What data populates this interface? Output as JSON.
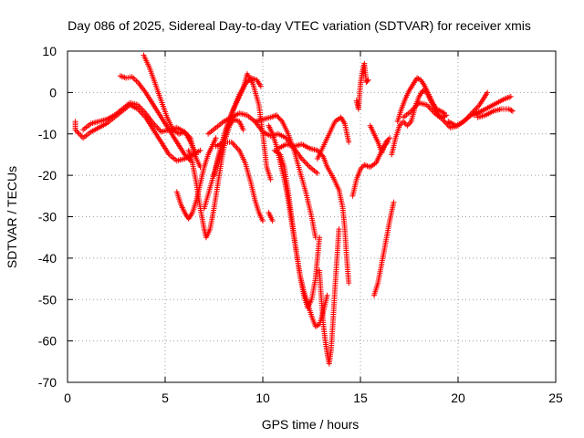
{
  "chart_data": {
    "type": "scatter",
    "title": "Day 086 of 2025, Sidereal Day-to-day VTEC variation (SDTVAR) for receiver xmis",
    "xlabel": "GPS time / hours",
    "ylabel": "SDTVAR / TECUs",
    "xlim": [
      0,
      25
    ],
    "ylim": [
      -70,
      10
    ],
    "x_ticks": [
      0,
      5,
      10,
      15,
      20,
      25
    ],
    "y_ticks": [
      10,
      0,
      -10,
      -20,
      -30,
      -40,
      -50,
      -60,
      -70
    ],
    "grid": true,
    "marker": "plus",
    "color": "#ff0000",
    "series": [
      {
        "points": [
          [
            0.4,
            -7
          ],
          [
            0.4,
            -9
          ],
          [
            0.8,
            -11
          ],
          [
            1.2,
            -9.5
          ],
          [
            1.6,
            -8.5
          ],
          [
            2.0,
            -7.5
          ],
          [
            2.4,
            -6
          ],
          [
            2.8,
            -4.5
          ],
          [
            3.2,
            -3
          ],
          [
            3.6,
            -4
          ],
          [
            4.0,
            -6
          ],
          [
            4.4,
            -9
          ],
          [
            4.8,
            -12
          ],
          [
            5.2,
            -15
          ],
          [
            5.6,
            -16.5
          ],
          [
            6.0,
            -16
          ],
          [
            6.4,
            -15
          ],
          [
            6.8,
            -14
          ]
        ]
      },
      {
        "points": [
          [
            0.8,
            -9
          ],
          [
            1.2,
            -7.5
          ],
          [
            1.6,
            -7
          ],
          [
            2.0,
            -6.5
          ],
          [
            2.4,
            -5.5
          ],
          [
            2.8,
            -4
          ],
          [
            3.2,
            -2.5
          ],
          [
            3.6,
            -3
          ],
          [
            4.0,
            -5
          ],
          [
            4.4,
            -7.5
          ],
          [
            4.8,
            -9.5
          ],
          [
            5.2,
            -9
          ],
          [
            5.6,
            -8.5
          ],
          [
            6.0,
            -9.5
          ],
          [
            6.3,
            -12
          ],
          [
            6.6,
            -15
          ]
        ]
      },
      {
        "points": [
          [
            2.7,
            4
          ],
          [
            3.0,
            3.5
          ],
          [
            3.3,
            3.8
          ],
          [
            3.6,
            2.5
          ],
          [
            4.0,
            0
          ],
          [
            4.4,
            -3
          ],
          [
            4.8,
            -6
          ],
          [
            5.2,
            -9
          ],
          [
            5.6,
            -12
          ],
          [
            6.0,
            -15
          ],
          [
            6.3,
            -16.5
          ]
        ]
      },
      {
        "points": [
          [
            3.9,
            9
          ],
          [
            4.2,
            6
          ],
          [
            4.5,
            2
          ],
          [
            4.8,
            -2
          ],
          [
            5.1,
            -6
          ],
          [
            5.4,
            -9
          ],
          [
            5.7,
            -10
          ],
          [
            6.0,
            -9.5
          ],
          [
            6.3,
            -11
          ],
          [
            6.5,
            -15
          ],
          [
            6.8,
            -18
          ]
        ]
      },
      {
        "points": [
          [
            5.6,
            -24
          ],
          [
            5.8,
            -27
          ],
          [
            6.0,
            -29
          ],
          [
            6.2,
            -30.5
          ],
          [
            6.4,
            -29
          ],
          [
            6.6,
            -26
          ],
          [
            6.8,
            -22
          ],
          [
            7.0,
            -18
          ],
          [
            7.2,
            -15
          ],
          [
            7.4,
            -13
          ],
          [
            7.6,
            -11
          ]
        ]
      },
      {
        "points": [
          [
            6.2,
            -14
          ],
          [
            6.4,
            -17
          ],
          [
            6.6,
            -22
          ],
          [
            6.8,
            -28
          ],
          [
            7.0,
            -33
          ],
          [
            7.1,
            -35
          ],
          [
            7.3,
            -33
          ],
          [
            7.5,
            -28
          ],
          [
            7.7,
            -22
          ],
          [
            7.9,
            -16
          ],
          [
            8.1,
            -11
          ],
          [
            8.3,
            -8
          ],
          [
            8.5,
            -6.5
          ],
          [
            8.8,
            -7
          ],
          [
            9.0,
            -9
          ]
        ]
      },
      {
        "points": [
          [
            7.0,
            -28
          ],
          [
            7.3,
            -23
          ],
          [
            7.6,
            -18
          ],
          [
            7.9,
            -13
          ],
          [
            8.2,
            -8
          ],
          [
            8.5,
            -4
          ],
          [
            8.8,
            -0.5
          ],
          [
            9.1,
            2
          ],
          [
            9.4,
            3.5
          ],
          [
            9.7,
            3
          ],
          [
            9.9,
            1.5
          ]
        ]
      },
      {
        "points": [
          [
            7.5,
            -20
          ],
          [
            7.8,
            -14
          ],
          [
            8.1,
            -9
          ],
          [
            8.4,
            -5
          ],
          [
            8.7,
            -2
          ],
          [
            9.0,
            1
          ],
          [
            9.2,
            4.5
          ],
          [
            9.5,
            2
          ],
          [
            9.8,
            -3
          ],
          [
            10.0,
            -10
          ],
          [
            10.2,
            -18
          ],
          [
            10.4,
            -21
          ]
        ]
      },
      {
        "points": [
          [
            7.2,
            -10
          ],
          [
            7.6,
            -8.5
          ],
          [
            8.0,
            -7
          ],
          [
            8.4,
            -6
          ],
          [
            8.8,
            -5
          ],
          [
            9.2,
            -5.5
          ],
          [
            9.6,
            -7
          ],
          [
            10.0,
            -9.5
          ],
          [
            10.4,
            -10.5
          ],
          [
            10.8,
            -10
          ],
          [
            11.2,
            -11
          ],
          [
            11.6,
            -13.5
          ],
          [
            12.0,
            -16
          ],
          [
            12.4,
            -18
          ],
          [
            12.8,
            -19.5
          ]
        ]
      },
      {
        "points": [
          [
            7.6,
            -13
          ],
          [
            8.0,
            -12
          ],
          [
            8.4,
            -12
          ],
          [
            8.8,
            -14
          ],
          [
            9.1,
            -17
          ],
          [
            9.4,
            -22
          ],
          [
            9.6,
            -26
          ],
          [
            9.8,
            -29
          ],
          [
            10.0,
            -31
          ]
        ]
      },
      {
        "points": [
          [
            10.3,
            -29
          ],
          [
            10.5,
            -31
          ]
        ]
      },
      {
        "points": [
          [
            9.6,
            -7
          ],
          [
            10.0,
            -6.5
          ],
          [
            10.4,
            -6
          ],
          [
            10.7,
            -5.5
          ],
          [
            11.0,
            -7
          ],
          [
            11.3,
            -10
          ],
          [
            11.6,
            -14
          ],
          [
            11.9,
            -19
          ],
          [
            12.2,
            -24
          ],
          [
            12.5,
            -30
          ],
          [
            12.7,
            -35
          ]
        ]
      },
      {
        "points": [
          [
            10.6,
            -14
          ],
          [
            10.9,
            -15
          ],
          [
            11.1,
            -18
          ],
          [
            11.3,
            -24
          ],
          [
            11.5,
            -31
          ],
          [
            11.7,
            -38
          ],
          [
            11.9,
            -44
          ],
          [
            12.1,
            -48
          ],
          [
            12.3,
            -51
          ],
          [
            12.5,
            -54
          ],
          [
            12.7,
            -56.5
          ],
          [
            12.9,
            -56
          ],
          [
            13.1,
            -53
          ],
          [
            13.3,
            -49
          ]
        ]
      },
      {
        "points": [
          [
            10.3,
            -8
          ],
          [
            10.5,
            -10
          ],
          [
            10.7,
            -13
          ],
          [
            10.9,
            -17
          ],
          [
            11.1,
            -21
          ],
          [
            11.3,
            -26
          ],
          [
            11.5,
            -32
          ],
          [
            11.7,
            -38
          ],
          [
            11.9,
            -44
          ],
          [
            12.1,
            -49
          ],
          [
            12.3,
            -52
          ],
          [
            12.5,
            -50
          ],
          [
            12.7,
            -45
          ],
          [
            12.8,
            -40
          ],
          [
            12.9,
            -35
          ]
        ]
      },
      {
        "points": [
          [
            10.8,
            -13.5
          ],
          [
            11.2,
            -12.5
          ],
          [
            11.6,
            -13
          ],
          [
            12.0,
            -12.5
          ],
          [
            12.4,
            -13.5
          ],
          [
            12.8,
            -14
          ],
          [
            13.1,
            -15.5
          ],
          [
            13.3,
            -18
          ],
          [
            13.6,
            -20.5
          ],
          [
            13.9,
            -23.5
          ],
          [
            14.1,
            -28
          ],
          [
            14.2,
            -33
          ],
          [
            14.3,
            -40
          ],
          [
            14.4,
            -46
          ]
        ]
      },
      {
        "points": [
          [
            12.8,
            -16
          ],
          [
            13.1,
            -13
          ],
          [
            13.4,
            -10
          ],
          [
            13.7,
            -7
          ],
          [
            14.0,
            -6
          ],
          [
            14.2,
            -7.5
          ],
          [
            14.4,
            -12
          ]
        ]
      },
      {
        "points": [
          [
            12.9,
            -43
          ],
          [
            13.0,
            -50
          ],
          [
            13.1,
            -56
          ],
          [
            13.2,
            -60
          ],
          [
            13.3,
            -63
          ],
          [
            13.4,
            -65.5
          ],
          [
            13.5,
            -62
          ],
          [
            13.6,
            -55
          ],
          [
            13.7,
            -47
          ],
          [
            13.8,
            -40
          ],
          [
            13.9,
            -33
          ]
        ]
      },
      {
        "points": [
          [
            14.6,
            -25
          ],
          [
            14.8,
            -21
          ],
          [
            15.0,
            -18.5
          ],
          [
            15.2,
            -17.5
          ],
          [
            15.5,
            -18
          ],
          [
            15.8,
            -17
          ],
          [
            16.0,
            -15
          ],
          [
            16.2,
            -13
          ],
          [
            16.4,
            -12
          ]
        ]
      },
      {
        "points": [
          [
            14.8,
            -2
          ],
          [
            14.9,
            -4
          ],
          [
            15.0,
            2
          ],
          [
            15.1,
            5
          ],
          [
            15.2,
            7
          ],
          [
            15.3,
            2.5
          ],
          [
            15.4,
            3
          ]
        ]
      },
      {
        "points": [
          [
            15.5,
            -8
          ],
          [
            15.7,
            -10
          ],
          [
            15.9,
            -12
          ],
          [
            16.1,
            -14.5
          ],
          [
            16.3,
            -12
          ],
          [
            16.5,
            -11
          ]
        ]
      },
      {
        "points": [
          [
            15.7,
            -49
          ],
          [
            15.9,
            -46
          ],
          [
            16.1,
            -41
          ],
          [
            16.3,
            -36
          ],
          [
            16.5,
            -31
          ],
          [
            16.7,
            -26.5
          ]
        ]
      },
      {
        "points": [
          [
            16.6,
            -15
          ],
          [
            16.8,
            -11
          ],
          [
            17.0,
            -8
          ],
          [
            17.2,
            -7
          ],
          [
            17.4,
            -8
          ],
          [
            17.6,
            -7
          ],
          [
            17.8,
            -3.5
          ],
          [
            18.0,
            -1
          ],
          [
            18.2,
            0.5
          ],
          [
            18.4,
            0
          ],
          [
            18.6,
            -2
          ],
          [
            18.8,
            -4
          ],
          [
            19.0,
            -5.5
          ],
          [
            19.2,
            -6
          ],
          [
            19.4,
            -5.5
          ]
        ]
      },
      {
        "points": [
          [
            16.9,
            -7
          ],
          [
            17.1,
            -4
          ],
          [
            17.3,
            -1.5
          ],
          [
            17.5,
            0.5
          ],
          [
            17.7,
            2
          ],
          [
            17.9,
            3.5
          ],
          [
            18.1,
            3
          ],
          [
            18.3,
            1.5
          ],
          [
            18.5,
            -0.5
          ],
          [
            18.7,
            -2.5
          ],
          [
            18.9,
            -4
          ],
          [
            19.1,
            -4.5
          ],
          [
            19.3,
            -5
          ]
        ]
      },
      {
        "points": [
          [
            17.2,
            -6
          ],
          [
            17.6,
            -4.5
          ],
          [
            18.0,
            -2.5
          ],
          [
            18.4,
            -3
          ],
          [
            18.8,
            -5
          ],
          [
            19.2,
            -6.5
          ],
          [
            19.6,
            -8.5
          ],
          [
            20.0,
            -8
          ],
          [
            20.4,
            -6.5
          ],
          [
            20.8,
            -5
          ],
          [
            21.2,
            -4.5
          ]
        ]
      },
      {
        "points": [
          [
            19.5,
            -7
          ],
          [
            19.9,
            -8
          ],
          [
            20.3,
            -7
          ],
          [
            20.7,
            -5
          ],
          [
            21.1,
            -3
          ],
          [
            21.5,
            0
          ]
        ]
      },
      {
        "points": [
          [
            20.8,
            -5.5
          ],
          [
            21.2,
            -4.5
          ],
          [
            21.6,
            -3.5
          ],
          [
            22.0,
            -2.5
          ],
          [
            22.4,
            -1.5
          ],
          [
            22.7,
            -1
          ]
        ]
      },
      {
        "points": [
          [
            21.0,
            -6
          ],
          [
            21.4,
            -5.5
          ],
          [
            21.8,
            -4.5
          ],
          [
            22.2,
            -4
          ],
          [
            22.6,
            -4
          ],
          [
            22.8,
            -4.5
          ]
        ]
      }
    ]
  }
}
